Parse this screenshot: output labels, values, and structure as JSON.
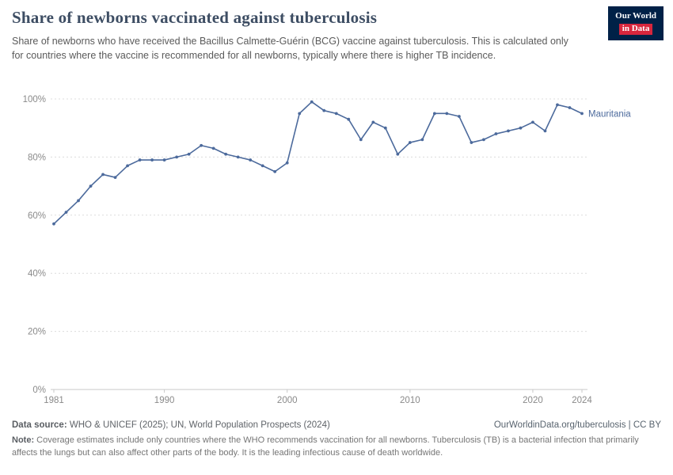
{
  "brand": {
    "navy": "#002147",
    "red": "#d7263d",
    "series_color": "#4c6a9c",
    "grid_color": "#dcdcdc",
    "axis_color": "#c8c8c8",
    "tick_label_color": "#8a8a8a"
  },
  "header": {
    "title": "Share of newborns vaccinated against tuberculosis",
    "subtitle": "Share of newborns who have received the Bacillus Calmette-Guérin (BCG) vaccine against tuberculosis. This is calculated only for countries where the vaccine is recommended for all newborns, typically where there is higher TB incidence.",
    "logo_line1": "Our World",
    "logo_line2": "in Data"
  },
  "chart_data": {
    "type": "line",
    "title": "Share of newborns vaccinated against tuberculosis",
    "xlabel": "",
    "ylabel": "",
    "ylim": [
      0,
      100
    ],
    "yticks": [
      0,
      20,
      40,
      60,
      80,
      100
    ],
    "ytick_labels": [
      "0%",
      "20%",
      "40%",
      "60%",
      "80%",
      "100%"
    ],
    "xticks": [
      1981,
      1990,
      2000,
      2010,
      2020,
      2024
    ],
    "grid": "dashed-horizontal",
    "legend_position": "end-of-line",
    "series": [
      {
        "name": "Mauritania",
        "color": "#4c6a9c",
        "x": [
          1981,
          1982,
          1983,
          1984,
          1985,
          1986,
          1987,
          1988,
          1989,
          1990,
          1991,
          1992,
          1993,
          1994,
          1995,
          1996,
          1997,
          1998,
          1999,
          2000,
          2001,
          2002,
          2003,
          2004,
          2005,
          2006,
          2007,
          2008,
          2009,
          2010,
          2011,
          2012,
          2013,
          2014,
          2015,
          2016,
          2017,
          2018,
          2019,
          2020,
          2021,
          2022,
          2023,
          2024
        ],
        "values": [
          57,
          61,
          65,
          70,
          74,
          73,
          77,
          79,
          79,
          79,
          80,
          81,
          84,
          83,
          81,
          80,
          79,
          77,
          75,
          78,
          95,
          99,
          96,
          95,
          93,
          86,
          92,
          90,
          81,
          85,
          86,
          95,
          95,
          94,
          85,
          86,
          88,
          89,
          90,
          92,
          89,
          98,
          97,
          95
        ]
      }
    ]
  },
  "footer": {
    "datasource_label": "Data source:",
    "datasource_text": "WHO & UNICEF (2025); UN, World Population Prospects (2024)",
    "link_text": "OurWorldinData.org/tuberculosis | CC BY",
    "note_label": "Note:",
    "note_text": "Coverage estimates include only countries where the WHO recommends vaccination for all newborns. Tuberculosis (TB) is a bacterial infection that primarily affects the lungs but can also affect other parts of the body. It is the leading infectious cause of death worldwide."
  }
}
